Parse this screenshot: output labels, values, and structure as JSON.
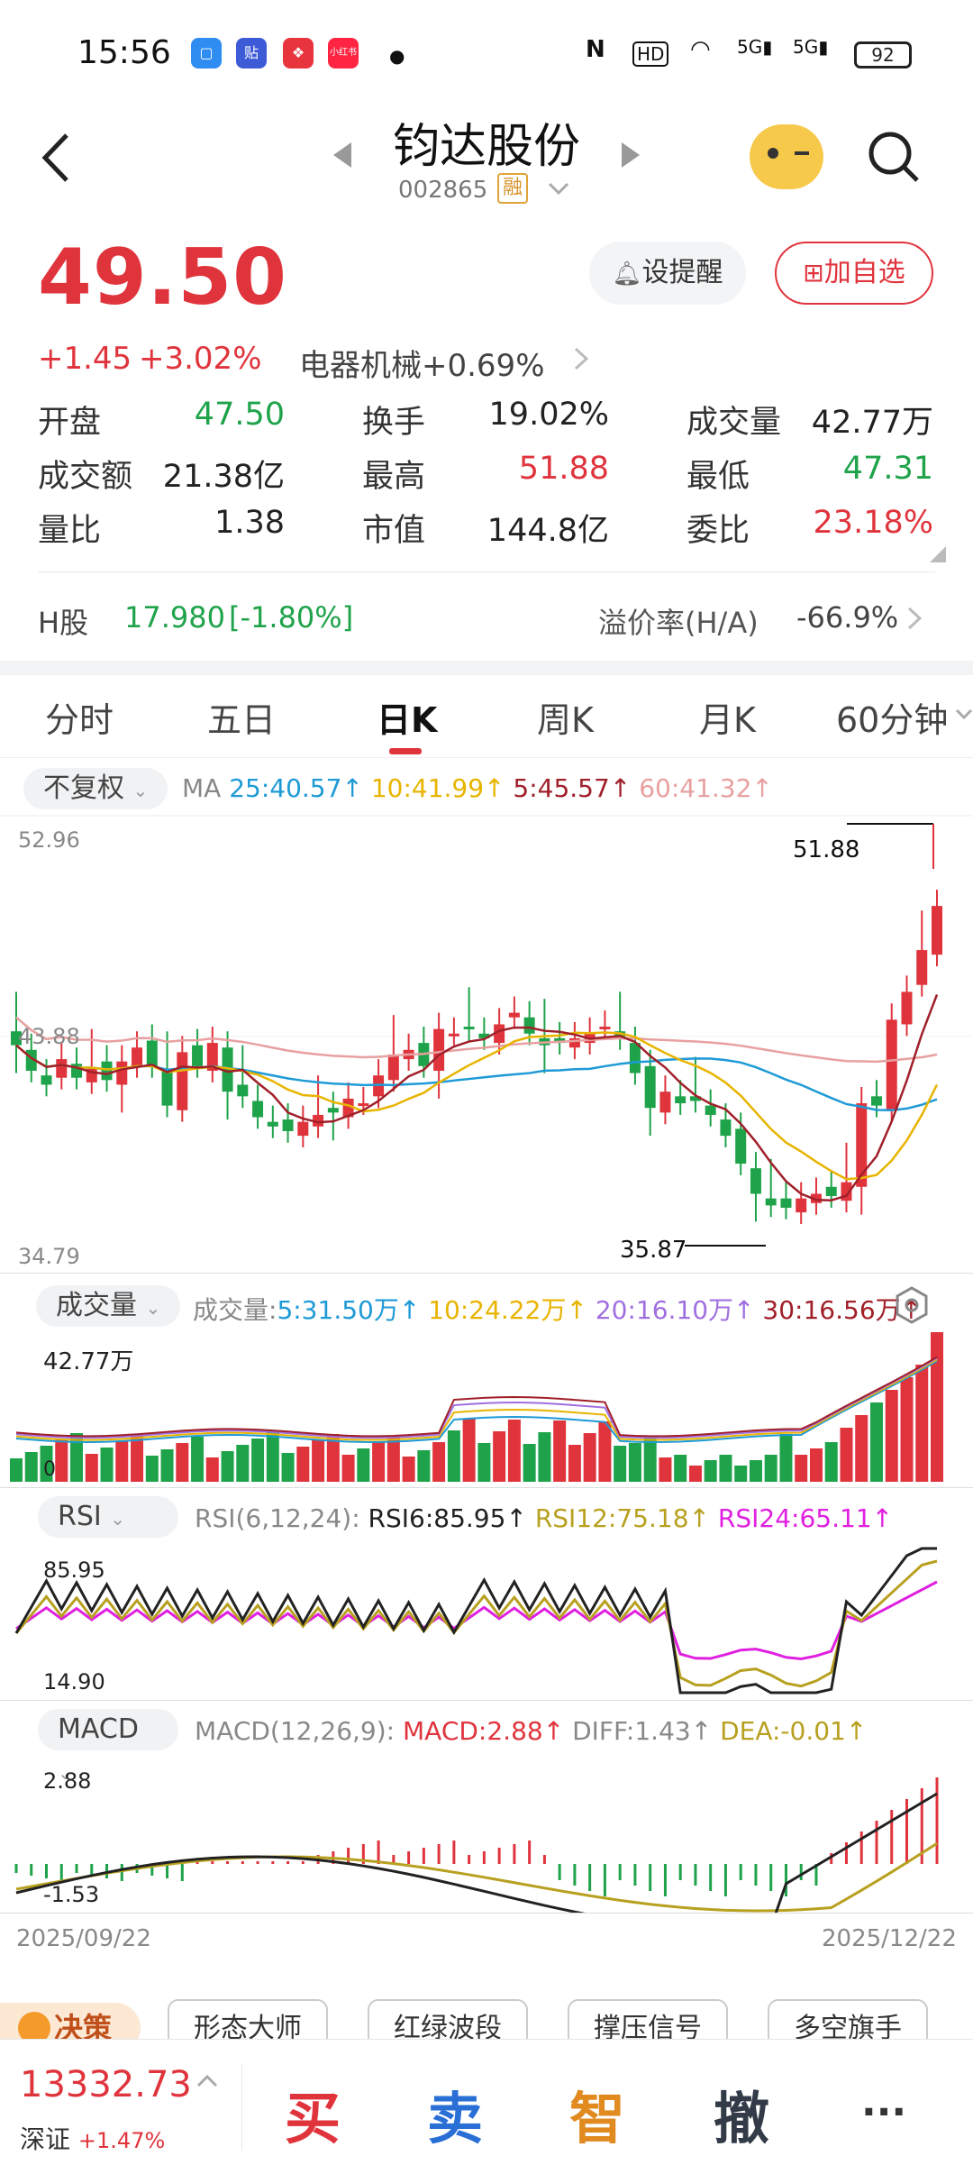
{
  "status": {
    "time": "15:56",
    "battery": "92",
    "apps": [
      "贴",
      "小红书"
    ]
  },
  "header": {
    "title": "钧达股份",
    "code": "002865",
    "margin_badge": "融"
  },
  "quote": {
    "price": "49.50",
    "change": "+1.45",
    "change_pct": "+3.02%",
    "sector": "电器机械",
    "sector_pct": "+0.69%",
    "alert_label": "设提醒",
    "watch_label": "加自选"
  },
  "stats": [
    {
      "label": "开盘",
      "value": "47.50",
      "color": "green"
    },
    {
      "label": "换手",
      "value": "19.02%",
      "color": "dark"
    },
    {
      "label": "成交量",
      "value": "42.77万",
      "color": "dark"
    },
    {
      "label": "成交额",
      "value": "21.38亿",
      "color": "dark"
    },
    {
      "label": "最高",
      "value": "51.88",
      "color": "red"
    },
    {
      "label": "最低",
      "value": "47.31",
      "color": "green"
    },
    {
      "label": "量比",
      "value": "1.38",
      "color": "dark"
    },
    {
      "label": "市值",
      "value": "144.8亿",
      "color": "dark"
    },
    {
      "label": "委比",
      "value": "23.18%",
      "color": "red"
    }
  ],
  "hshare": {
    "label": "H股",
    "price": "17.980",
    "pct": "[-1.80%]",
    "premium_label": "溢价率(H/A)",
    "premium": "-66.9%"
  },
  "tabs": [
    "分时",
    "五日",
    "日K",
    "周K",
    "月K",
    "60分钟"
  ],
  "active_tab": "日K",
  "kline": {
    "adjust": "不复权",
    "ma_label": "MA",
    "ma_items": [
      {
        "text": "25:40.57↑",
        "color": "#1e9ad6"
      },
      {
        "text": "10:41.99↑",
        "color": "#e8b400"
      },
      {
        "text": "5:45.57↑",
        "color": "#a0202a"
      },
      {
        "text": "60:41.32↑",
        "color": "#e8a0a0"
      }
    ],
    "y_top": "52.96",
    "y_mid": "43.88",
    "y_bot": "34.79",
    "high_mark": "51.88",
    "low_mark": "35.87"
  },
  "volume": {
    "chip": "成交量",
    "label": "成交量:",
    "items": [
      {
        "text": "5:31.50万↑",
        "color": "#1e9ad6"
      },
      {
        "text": "10:24.22万↑",
        "color": "#e8b400"
      },
      {
        "text": "20:16.10万↑",
        "color": "#a070e0"
      },
      {
        "text": "30:16.56万↑",
        "color": "#a0202a"
      }
    ],
    "max": "42.77万",
    "zero": "0"
  },
  "rsi": {
    "chip": "RSI",
    "label": "RSI(6,12,24):",
    "items": [
      {
        "text": "RSI6:85.95↑",
        "color": "#222222"
      },
      {
        "text": "RSI12:75.18↑",
        "color": "#b8a020"
      },
      {
        "text": "RSI24:65.11↑",
        "color": "#e020e0"
      }
    ],
    "top": "85.95",
    "bottom": "14.90"
  },
  "macd": {
    "chip": "MACD",
    "label": "MACD(12,26,9):",
    "items": [
      {
        "text": "MACD:2.88↑",
        "color": "#e0343d"
      },
      {
        "text": "DIFF:1.43↑",
        "color": "#888888"
      },
      {
        "text": "DEA:-0.01↑",
        "color": "#b8a020"
      }
    ],
    "top": "2.88",
    "bottom": "-1.53",
    "date_start": "2025/09/22",
    "date_end": "2025/12/22"
  },
  "tools": [
    "决策",
    "形态大师",
    "红绿波段",
    "撑压信号",
    "多空旗手"
  ],
  "bottom": {
    "index_value": "13332.73",
    "index_name": "深证",
    "index_pct": "+1.47%",
    "buy": "买",
    "sell": "卖",
    "smart": "智",
    "cancel": "撤",
    "more": "···"
  }
}
